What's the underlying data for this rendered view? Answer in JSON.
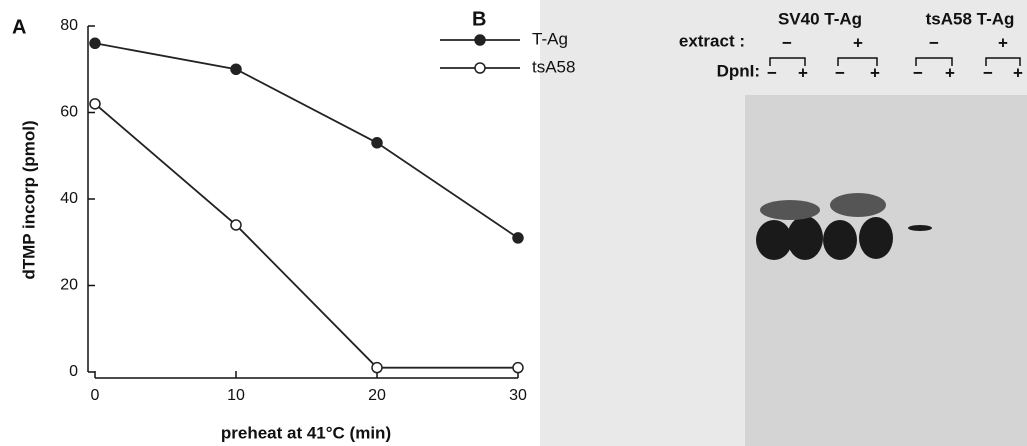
{
  "chart_data": {
    "type": "line",
    "panel_label": "A",
    "x_label": "preheat at 41°C (min)",
    "y_label": "dTMP incorp (pmol)",
    "x": [
      0,
      10,
      20,
      30
    ],
    "series": [
      {
        "name": "T-Ag",
        "color": "#222222",
        "marker": "filled",
        "values": [
          76,
          70,
          53,
          31
        ]
      },
      {
        "name": "tsA58",
        "color": "#222222",
        "marker": "open",
        "values": [
          62,
          34,
          1,
          1
        ]
      }
    ],
    "xlim": [
      0,
      30
    ],
    "xticks": [
      0,
      10,
      20,
      30
    ],
    "ylim": [
      0,
      80
    ],
    "yticks": [
      0,
      20,
      40,
      60,
      80
    ]
  },
  "panel_b": {
    "label": "B",
    "groups": [
      "SV40 T-Ag",
      "tsA58 T-Ag"
    ],
    "extract_label": "extract :",
    "extract": [
      "−",
      "+",
      "−",
      "+"
    ],
    "dpni_label": "DpnI:",
    "dpni": [
      "−",
      "+",
      "−",
      "+",
      "−",
      "+",
      "−",
      "+"
    ]
  }
}
